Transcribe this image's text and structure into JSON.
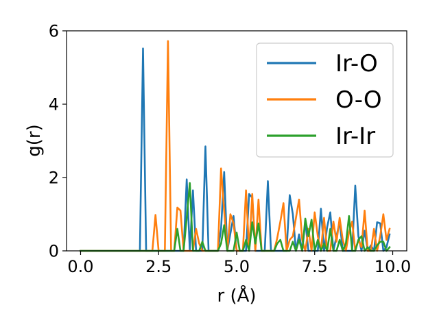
{
  "chart_data": {
    "type": "line",
    "title": "",
    "xlabel": "r (Å)",
    "ylabel": "g(r)",
    "xlim": [
      -0.45,
      10.45
    ],
    "ylim": [
      0,
      6
    ],
    "xticks": [
      {
        "value": 0.0,
        "label": "0.0"
      },
      {
        "value": 2.5,
        "label": "2.5"
      },
      {
        "value": 5.0,
        "label": "5.0"
      },
      {
        "value": 7.5,
        "label": "7.5"
      },
      {
        "value": 10.0,
        "label": "10.0"
      }
    ],
    "yticks": [
      {
        "value": 0,
        "label": "0"
      },
      {
        "value": 2,
        "label": "2"
      },
      {
        "value": 4,
        "label": "4"
      },
      {
        "value": 6,
        "label": "6"
      }
    ],
    "grid": false,
    "legend_position": "top-right",
    "series": [
      {
        "name": "Ir-O",
        "color": "#1f77b4",
        "points": [
          [
            0.0,
            0
          ],
          [
            1.8,
            0
          ],
          [
            1.9,
            0
          ],
          [
            2.0,
            5.52
          ],
          [
            2.1,
            0
          ],
          [
            2.2,
            0
          ],
          [
            3.3,
            0
          ],
          [
            3.4,
            1.95
          ],
          [
            3.5,
            0
          ],
          [
            3.6,
            1.65
          ],
          [
            3.7,
            0
          ],
          [
            3.9,
            0
          ],
          [
            4.0,
            2.85
          ],
          [
            4.1,
            0
          ],
          [
            4.4,
            0
          ],
          [
            4.5,
            0.6
          ],
          [
            4.6,
            2.15
          ],
          [
            4.7,
            0
          ],
          [
            4.9,
            0.95
          ],
          [
            5.0,
            0
          ],
          [
            5.3,
            0
          ],
          [
            5.4,
            1.55
          ],
          [
            5.5,
            1.45
          ],
          [
            5.6,
            0
          ],
          [
            5.9,
            0
          ],
          [
            6.0,
            1.9
          ],
          [
            6.1,
            0
          ],
          [
            6.6,
            0
          ],
          [
            6.7,
            1.52
          ],
          [
            6.8,
            1.0
          ],
          [
            6.9,
            0
          ],
          [
            7.0,
            0.45
          ],
          [
            7.1,
            0
          ],
          [
            7.2,
            0.8
          ],
          [
            7.3,
            0
          ],
          [
            7.6,
            0
          ],
          [
            7.7,
            1.15
          ],
          [
            7.8,
            0
          ],
          [
            7.9,
            0.65
          ],
          [
            8.0,
            1.05
          ],
          [
            8.1,
            0
          ],
          [
            8.3,
            0.8
          ],
          [
            8.4,
            0
          ],
          [
            8.7,
            0
          ],
          [
            8.8,
            1.78
          ],
          [
            8.9,
            0.4
          ],
          [
            9.0,
            0
          ],
          [
            9.1,
            0.55
          ],
          [
            9.2,
            0
          ],
          [
            9.3,
            0.15
          ],
          [
            9.4,
            0
          ],
          [
            9.5,
            0.78
          ],
          [
            9.6,
            0.75
          ],
          [
            9.7,
            0
          ],
          [
            9.8,
            0.1
          ],
          [
            9.9,
            0.45
          ]
        ]
      },
      {
        "name": "O-O",
        "color": "#ff7f0e",
        "points": [
          [
            0.0,
            0
          ],
          [
            2.2,
            0
          ],
          [
            2.3,
            0
          ],
          [
            2.4,
            0.98
          ],
          [
            2.5,
            0
          ],
          [
            2.6,
            0
          ],
          [
            2.7,
            0
          ],
          [
            2.8,
            5.72
          ],
          [
            2.9,
            0
          ],
          [
            3.0,
            0
          ],
          [
            3.1,
            1.18
          ],
          [
            3.2,
            1.1
          ],
          [
            3.3,
            0
          ],
          [
            3.6,
            0
          ],
          [
            3.7,
            0.6
          ],
          [
            3.8,
            0.2
          ],
          [
            3.9,
            0
          ],
          [
            4.4,
            0
          ],
          [
            4.5,
            2.25
          ],
          [
            4.6,
            1.1
          ],
          [
            4.7,
            0
          ],
          [
            4.8,
            1.0
          ],
          [
            4.9,
            0.75
          ],
          [
            5.0,
            0
          ],
          [
            5.2,
            0
          ],
          [
            5.3,
            1.65
          ],
          [
            5.4,
            0
          ],
          [
            5.5,
            1.55
          ],
          [
            5.6,
            0
          ],
          [
            5.7,
            1.4
          ],
          [
            5.8,
            0
          ],
          [
            6.2,
            0
          ],
          [
            6.3,
            0.35
          ],
          [
            6.4,
            0.8
          ],
          [
            6.5,
            1.3
          ],
          [
            6.6,
            0
          ],
          [
            6.7,
            0.3
          ],
          [
            6.8,
            0.4
          ],
          [
            6.9,
            0.9
          ],
          [
            7.0,
            1.4
          ],
          [
            7.1,
            0.3
          ],
          [
            7.2,
            0
          ],
          [
            7.3,
            0.6
          ],
          [
            7.4,
            0
          ],
          [
            7.5,
            1.05
          ],
          [
            7.6,
            0.4
          ],
          [
            7.7,
            0
          ],
          [
            7.8,
            0.9
          ],
          [
            7.9,
            0
          ],
          [
            8.0,
            0
          ],
          [
            8.1,
            0.8
          ],
          [
            8.2,
            0.25
          ],
          [
            8.3,
            0.9
          ],
          [
            8.4,
            0.3
          ],
          [
            8.5,
            0
          ],
          [
            8.6,
            0.5
          ],
          [
            8.7,
            0.8
          ],
          [
            8.8,
            0
          ],
          [
            8.9,
            0.3
          ],
          [
            9.0,
            0.1
          ],
          [
            9.1,
            1.1
          ],
          [
            9.2,
            0
          ],
          [
            9.3,
            0
          ],
          [
            9.4,
            0.6
          ],
          [
            9.5,
            0
          ],
          [
            9.6,
            0.4
          ],
          [
            9.7,
            1.0
          ],
          [
            9.8,
            0.3
          ],
          [
            9.9,
            0.6
          ]
        ]
      },
      {
        "name": "Ir-Ir",
        "color": "#2ca02c",
        "points": [
          [
            0.0,
            0
          ],
          [
            2.9,
            0
          ],
          [
            3.0,
            0
          ],
          [
            3.1,
            0.6
          ],
          [
            3.2,
            0
          ],
          [
            3.3,
            0
          ],
          [
            3.4,
            0.9
          ],
          [
            3.5,
            1.85
          ],
          [
            3.6,
            0
          ],
          [
            3.7,
            0
          ],
          [
            3.8,
            0
          ],
          [
            3.9,
            0.25
          ],
          [
            4.0,
            0
          ],
          [
            4.1,
            0
          ],
          [
            4.2,
            0
          ],
          [
            4.3,
            0
          ],
          [
            4.4,
            0
          ],
          [
            4.5,
            0.2
          ],
          [
            4.6,
            0.7
          ],
          [
            4.7,
            0
          ],
          [
            4.8,
            0
          ],
          [
            4.9,
            0
          ],
          [
            5.0,
            0.5
          ],
          [
            5.1,
            0
          ],
          [
            5.2,
            0
          ],
          [
            5.3,
            0.3
          ],
          [
            5.4,
            0
          ],
          [
            5.5,
            0.78
          ],
          [
            5.6,
            0.2
          ],
          [
            5.7,
            0.75
          ],
          [
            5.8,
            0
          ],
          [
            5.9,
            0
          ],
          [
            6.0,
            0
          ],
          [
            6.1,
            0
          ],
          [
            6.2,
            0
          ],
          [
            6.3,
            0.2
          ],
          [
            6.4,
            0.3
          ],
          [
            6.5,
            0
          ],
          [
            6.6,
            0
          ],
          [
            6.7,
            0
          ],
          [
            6.8,
            0.25
          ],
          [
            6.9,
            0
          ],
          [
            7.0,
            0.3
          ],
          [
            7.1,
            0
          ],
          [
            7.2,
            0.88
          ],
          [
            7.3,
            0.4
          ],
          [
            7.4,
            0.85
          ],
          [
            7.5,
            0
          ],
          [
            7.6,
            0.3
          ],
          [
            7.7,
            0
          ],
          [
            7.8,
            0.2
          ],
          [
            7.9,
            0
          ],
          [
            8.0,
            0.6
          ],
          [
            8.1,
            0
          ],
          [
            8.2,
            0
          ],
          [
            8.3,
            0.3
          ],
          [
            8.4,
            0
          ],
          [
            8.5,
            0.2
          ],
          [
            8.6,
            0.95
          ],
          [
            8.7,
            0
          ],
          [
            8.8,
            0
          ],
          [
            8.9,
            0.3
          ],
          [
            9.0,
            0.4
          ],
          [
            9.1,
            0
          ],
          [
            9.2,
            0.1
          ],
          [
            9.3,
            0
          ],
          [
            9.4,
            0
          ],
          [
            9.5,
            0.15
          ],
          [
            9.6,
            0.25
          ],
          [
            9.7,
            0.25
          ],
          [
            9.8,
            0
          ],
          [
            9.9,
            0.1
          ]
        ]
      }
    ]
  }
}
